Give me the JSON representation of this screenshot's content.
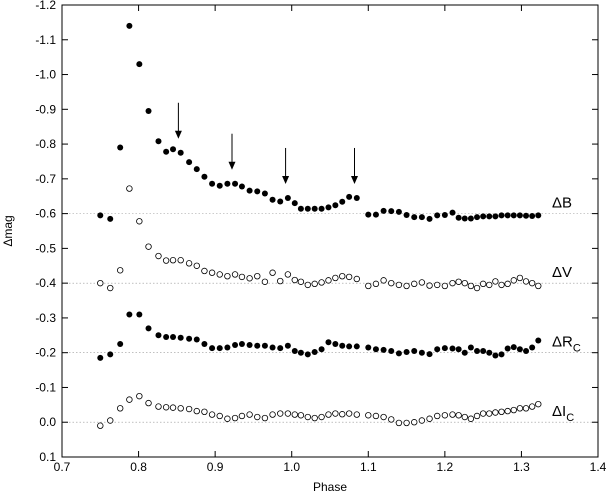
{
  "chart_data": {
    "type": "scatter",
    "xlabel": "Phase",
    "ylabel": "Δmag",
    "xlim": [
      0.7,
      1.4
    ],
    "ylim": [
      -1.2,
      0.1
    ],
    "y_inverted": true,
    "grid": false,
    "xticks": [
      "0.7",
      "0.8",
      "0.9",
      "1.0",
      "1.1",
      "1.2",
      "1.3",
      "1.4"
    ],
    "yticks": [
      "-1.2",
      "-1.1",
      "-1.0",
      "-0.9",
      "-0.8",
      "-0.7",
      "-0.6",
      "-0.5",
      "-0.4",
      "-0.3",
      "-0.2",
      "-0.1",
      "0.0",
      "0.1"
    ],
    "reference_lines": [
      -0.6,
      -0.4,
      -0.2,
      0.0
    ],
    "arrows_at_phase": [
      0.852,
      0.922,
      0.992,
      1.082
    ],
    "series": [
      {
        "name": "ΔB",
        "label_main": "ΔB",
        "label_sub": "",
        "marker": "filled",
        "points": [
          [
            0.75,
            -0.595
          ],
          [
            0.763,
            -0.585
          ],
          [
            0.776,
            -0.79
          ],
          [
            0.788,
            -1.14
          ],
          [
            0.801,
            -1.03
          ],
          [
            0.813,
            -0.895
          ],
          [
            0.826,
            -0.808
          ],
          [
            0.836,
            -0.778
          ],
          [
            0.845,
            -0.785
          ],
          [
            0.855,
            -0.775
          ],
          [
            0.866,
            -0.748
          ],
          [
            0.876,
            -0.728
          ],
          [
            0.886,
            -0.706
          ],
          [
            0.896,
            -0.686
          ],
          [
            0.906,
            -0.68
          ],
          [
            0.916,
            -0.686
          ],
          [
            0.926,
            -0.686
          ],
          [
            0.935,
            -0.678
          ],
          [
            0.945,
            -0.666
          ],
          [
            0.955,
            -0.664
          ],
          [
            0.965,
            -0.658
          ],
          [
            0.975,
            -0.64
          ],
          [
            0.985,
            -0.635
          ],
          [
            0.995,
            -0.645
          ],
          [
            1.004,
            -0.63
          ],
          [
            1.012,
            -0.614
          ],
          [
            1.021,
            -0.614
          ],
          [
            1.03,
            -0.614
          ],
          [
            1.039,
            -0.614
          ],
          [
            1.048,
            -0.618
          ],
          [
            1.057,
            -0.624
          ],
          [
            1.066,
            -0.634
          ],
          [
            1.075,
            -0.648
          ],
          [
            1.085,
            -0.645
          ],
          [
            1.1,
            -0.597
          ],
          [
            1.11,
            -0.597
          ],
          [
            1.12,
            -0.608
          ],
          [
            1.13,
            -0.607
          ],
          [
            1.14,
            -0.605
          ],
          [
            1.15,
            -0.596
          ],
          [
            1.16,
            -0.59
          ],
          [
            1.17,
            -0.59
          ],
          [
            1.18,
            -0.585
          ],
          [
            1.19,
            -0.595
          ],
          [
            1.2,
            -0.596
          ],
          [
            1.21,
            -0.603
          ],
          [
            1.218,
            -0.588
          ],
          [
            1.226,
            -0.586
          ],
          [
            1.234,
            -0.586
          ],
          [
            1.242,
            -0.59
          ],
          [
            1.25,
            -0.592
          ],
          [
            1.258,
            -0.592
          ],
          [
            1.266,
            -0.592
          ],
          [
            1.274,
            -0.595
          ],
          [
            1.282,
            -0.595
          ],
          [
            1.29,
            -0.595
          ],
          [
            1.298,
            -0.595
          ],
          [
            1.306,
            -0.594
          ],
          [
            1.314,
            -0.593
          ],
          [
            1.322,
            -0.595
          ]
        ]
      },
      {
        "name": "ΔV",
        "label_main": "ΔV",
        "label_sub": "",
        "marker": "open",
        "points": [
          [
            0.75,
            -0.4
          ],
          [
            0.763,
            -0.386
          ],
          [
            0.776,
            -0.437
          ],
          [
            0.788,
            -0.672
          ],
          [
            0.801,
            -0.578
          ],
          [
            0.813,
            -0.505
          ],
          [
            0.826,
            -0.478
          ],
          [
            0.836,
            -0.465
          ],
          [
            0.845,
            -0.466
          ],
          [
            0.855,
            -0.466
          ],
          [
            0.866,
            -0.457
          ],
          [
            0.876,
            -0.45
          ],
          [
            0.886,
            -0.435
          ],
          [
            0.896,
            -0.43
          ],
          [
            0.906,
            -0.425
          ],
          [
            0.916,
            -0.42
          ],
          [
            0.926,
            -0.425
          ],
          [
            0.935,
            -0.418
          ],
          [
            0.945,
            -0.414
          ],
          [
            0.955,
            -0.42
          ],
          [
            0.965,
            -0.404
          ],
          [
            0.975,
            -0.43
          ],
          [
            0.985,
            -0.406
          ],
          [
            0.995,
            -0.425
          ],
          [
            1.004,
            -0.409
          ],
          [
            1.012,
            -0.404
          ],
          [
            1.021,
            -0.395
          ],
          [
            1.03,
            -0.398
          ],
          [
            1.039,
            -0.402
          ],
          [
            1.048,
            -0.408
          ],
          [
            1.057,
            -0.415
          ],
          [
            1.066,
            -0.42
          ],
          [
            1.075,
            -0.418
          ],
          [
            1.085,
            -0.412
          ],
          [
            1.1,
            -0.392
          ],
          [
            1.11,
            -0.398
          ],
          [
            1.12,
            -0.408
          ],
          [
            1.13,
            -0.4
          ],
          [
            1.14,
            -0.395
          ],
          [
            1.15,
            -0.392
          ],
          [
            1.16,
            -0.398
          ],
          [
            1.17,
            -0.402
          ],
          [
            1.18,
            -0.393
          ],
          [
            1.19,
            -0.395
          ],
          [
            1.2,
            -0.392
          ],
          [
            1.21,
            -0.4
          ],
          [
            1.218,
            -0.404
          ],
          [
            1.226,
            -0.4
          ],
          [
            1.234,
            -0.392
          ],
          [
            1.242,
            -0.386
          ],
          [
            1.25,
            -0.398
          ],
          [
            1.258,
            -0.395
          ],
          [
            1.266,
            -0.405
          ],
          [
            1.274,
            -0.395
          ],
          [
            1.282,
            -0.398
          ],
          [
            1.29,
            -0.408
          ],
          [
            1.298,
            -0.415
          ],
          [
            1.306,
            -0.405
          ],
          [
            1.314,
            -0.4
          ],
          [
            1.322,
            -0.392
          ]
        ]
      },
      {
        "name": "ΔR_C",
        "label_main": "ΔR",
        "label_sub": "C",
        "marker": "filled",
        "points": [
          [
            0.75,
            -0.185
          ],
          [
            0.763,
            -0.195
          ],
          [
            0.776,
            -0.225
          ],
          [
            0.788,
            -0.31
          ],
          [
            0.801,
            -0.31
          ],
          [
            0.813,
            -0.27
          ],
          [
            0.826,
            -0.25
          ],
          [
            0.836,
            -0.245
          ],
          [
            0.845,
            -0.245
          ],
          [
            0.855,
            -0.243
          ],
          [
            0.866,
            -0.24
          ],
          [
            0.876,
            -0.238
          ],
          [
            0.886,
            -0.225
          ],
          [
            0.896,
            -0.213
          ],
          [
            0.906,
            -0.213
          ],
          [
            0.916,
            -0.215
          ],
          [
            0.926,
            -0.222
          ],
          [
            0.935,
            -0.225
          ],
          [
            0.945,
            -0.222
          ],
          [
            0.955,
            -0.22
          ],
          [
            0.965,
            -0.22
          ],
          [
            0.975,
            -0.215
          ],
          [
            0.985,
            -0.213
          ],
          [
            0.995,
            -0.22
          ],
          [
            1.004,
            -0.205
          ],
          [
            1.012,
            -0.2
          ],
          [
            1.021,
            -0.195
          ],
          [
            1.03,
            -0.202
          ],
          [
            1.039,
            -0.21
          ],
          [
            1.048,
            -0.23
          ],
          [
            1.057,
            -0.225
          ],
          [
            1.066,
            -0.22
          ],
          [
            1.075,
            -0.218
          ],
          [
            1.085,
            -0.218
          ],
          [
            1.1,
            -0.215
          ],
          [
            1.11,
            -0.21
          ],
          [
            1.12,
            -0.208
          ],
          [
            1.13,
            -0.205
          ],
          [
            1.14,
            -0.198
          ],
          [
            1.15,
            -0.202
          ],
          [
            1.16,
            -0.205
          ],
          [
            1.17,
            -0.2
          ],
          [
            1.18,
            -0.196
          ],
          [
            1.19,
            -0.21
          ],
          [
            1.2,
            -0.213
          ],
          [
            1.21,
            -0.212
          ],
          [
            1.218,
            -0.21
          ],
          [
            1.226,
            -0.2
          ],
          [
            1.234,
            -0.215
          ],
          [
            1.242,
            -0.205
          ],
          [
            1.25,
            -0.205
          ],
          [
            1.258,
            -0.2
          ],
          [
            1.266,
            -0.192
          ],
          [
            1.274,
            -0.195
          ],
          [
            1.282,
            -0.212
          ],
          [
            1.29,
            -0.216
          ],
          [
            1.298,
            -0.21
          ],
          [
            1.306,
            -0.205
          ],
          [
            1.314,
            -0.215
          ],
          [
            1.322,
            -0.235
          ]
        ]
      },
      {
        "name": "ΔI_C",
        "label_main": "ΔI",
        "label_sub": "C",
        "marker": "open",
        "points": [
          [
            0.75,
            0.01
          ],
          [
            0.763,
            -0.005
          ],
          [
            0.776,
            -0.04
          ],
          [
            0.788,
            -0.065
          ],
          [
            0.801,
            -0.075
          ],
          [
            0.813,
            -0.055
          ],
          [
            0.826,
            -0.045
          ],
          [
            0.836,
            -0.043
          ],
          [
            0.845,
            -0.042
          ],
          [
            0.855,
            -0.04
          ],
          [
            0.866,
            -0.038
          ],
          [
            0.876,
            -0.032
          ],
          [
            0.886,
            -0.03
          ],
          [
            0.896,
            -0.022
          ],
          [
            0.906,
            -0.018
          ],
          [
            0.916,
            -0.01
          ],
          [
            0.926,
            -0.012
          ],
          [
            0.935,
            -0.018
          ],
          [
            0.945,
            -0.022
          ],
          [
            0.955,
            -0.015
          ],
          [
            0.965,
            -0.012
          ],
          [
            0.975,
            -0.022
          ],
          [
            0.985,
            -0.025
          ],
          [
            0.995,
            -0.025
          ],
          [
            1.004,
            -0.022
          ],
          [
            1.012,
            -0.02
          ],
          [
            1.021,
            -0.015
          ],
          [
            1.03,
            -0.012
          ],
          [
            1.039,
            -0.015
          ],
          [
            1.048,
            -0.022
          ],
          [
            1.057,
            -0.025
          ],
          [
            1.066,
            -0.023
          ],
          [
            1.075,
            -0.025
          ],
          [
            1.085,
            -0.022
          ],
          [
            1.1,
            -0.02
          ],
          [
            1.11,
            -0.018
          ],
          [
            1.12,
            -0.015
          ],
          [
            1.13,
            -0.008
          ],
          [
            1.14,
            0.002
          ],
          [
            1.15,
            0.002
          ],
          [
            1.16,
            0.0
          ],
          [
            1.17,
            -0.005
          ],
          [
            1.18,
            -0.01
          ],
          [
            1.19,
            -0.018
          ],
          [
            1.2,
            -0.02
          ],
          [
            1.21,
            -0.022
          ],
          [
            1.218,
            -0.02
          ],
          [
            1.226,
            -0.015
          ],
          [
            1.234,
            -0.01
          ],
          [
            1.242,
            -0.018
          ],
          [
            1.25,
            -0.025
          ],
          [
            1.258,
            -0.025
          ],
          [
            1.266,
            -0.028
          ],
          [
            1.274,
            -0.03
          ],
          [
            1.282,
            -0.032
          ],
          [
            1.29,
            -0.035
          ],
          [
            1.298,
            -0.04
          ],
          [
            1.306,
            -0.04
          ],
          [
            1.314,
            -0.045
          ],
          [
            1.322,
            -0.052
          ]
        ]
      }
    ]
  }
}
